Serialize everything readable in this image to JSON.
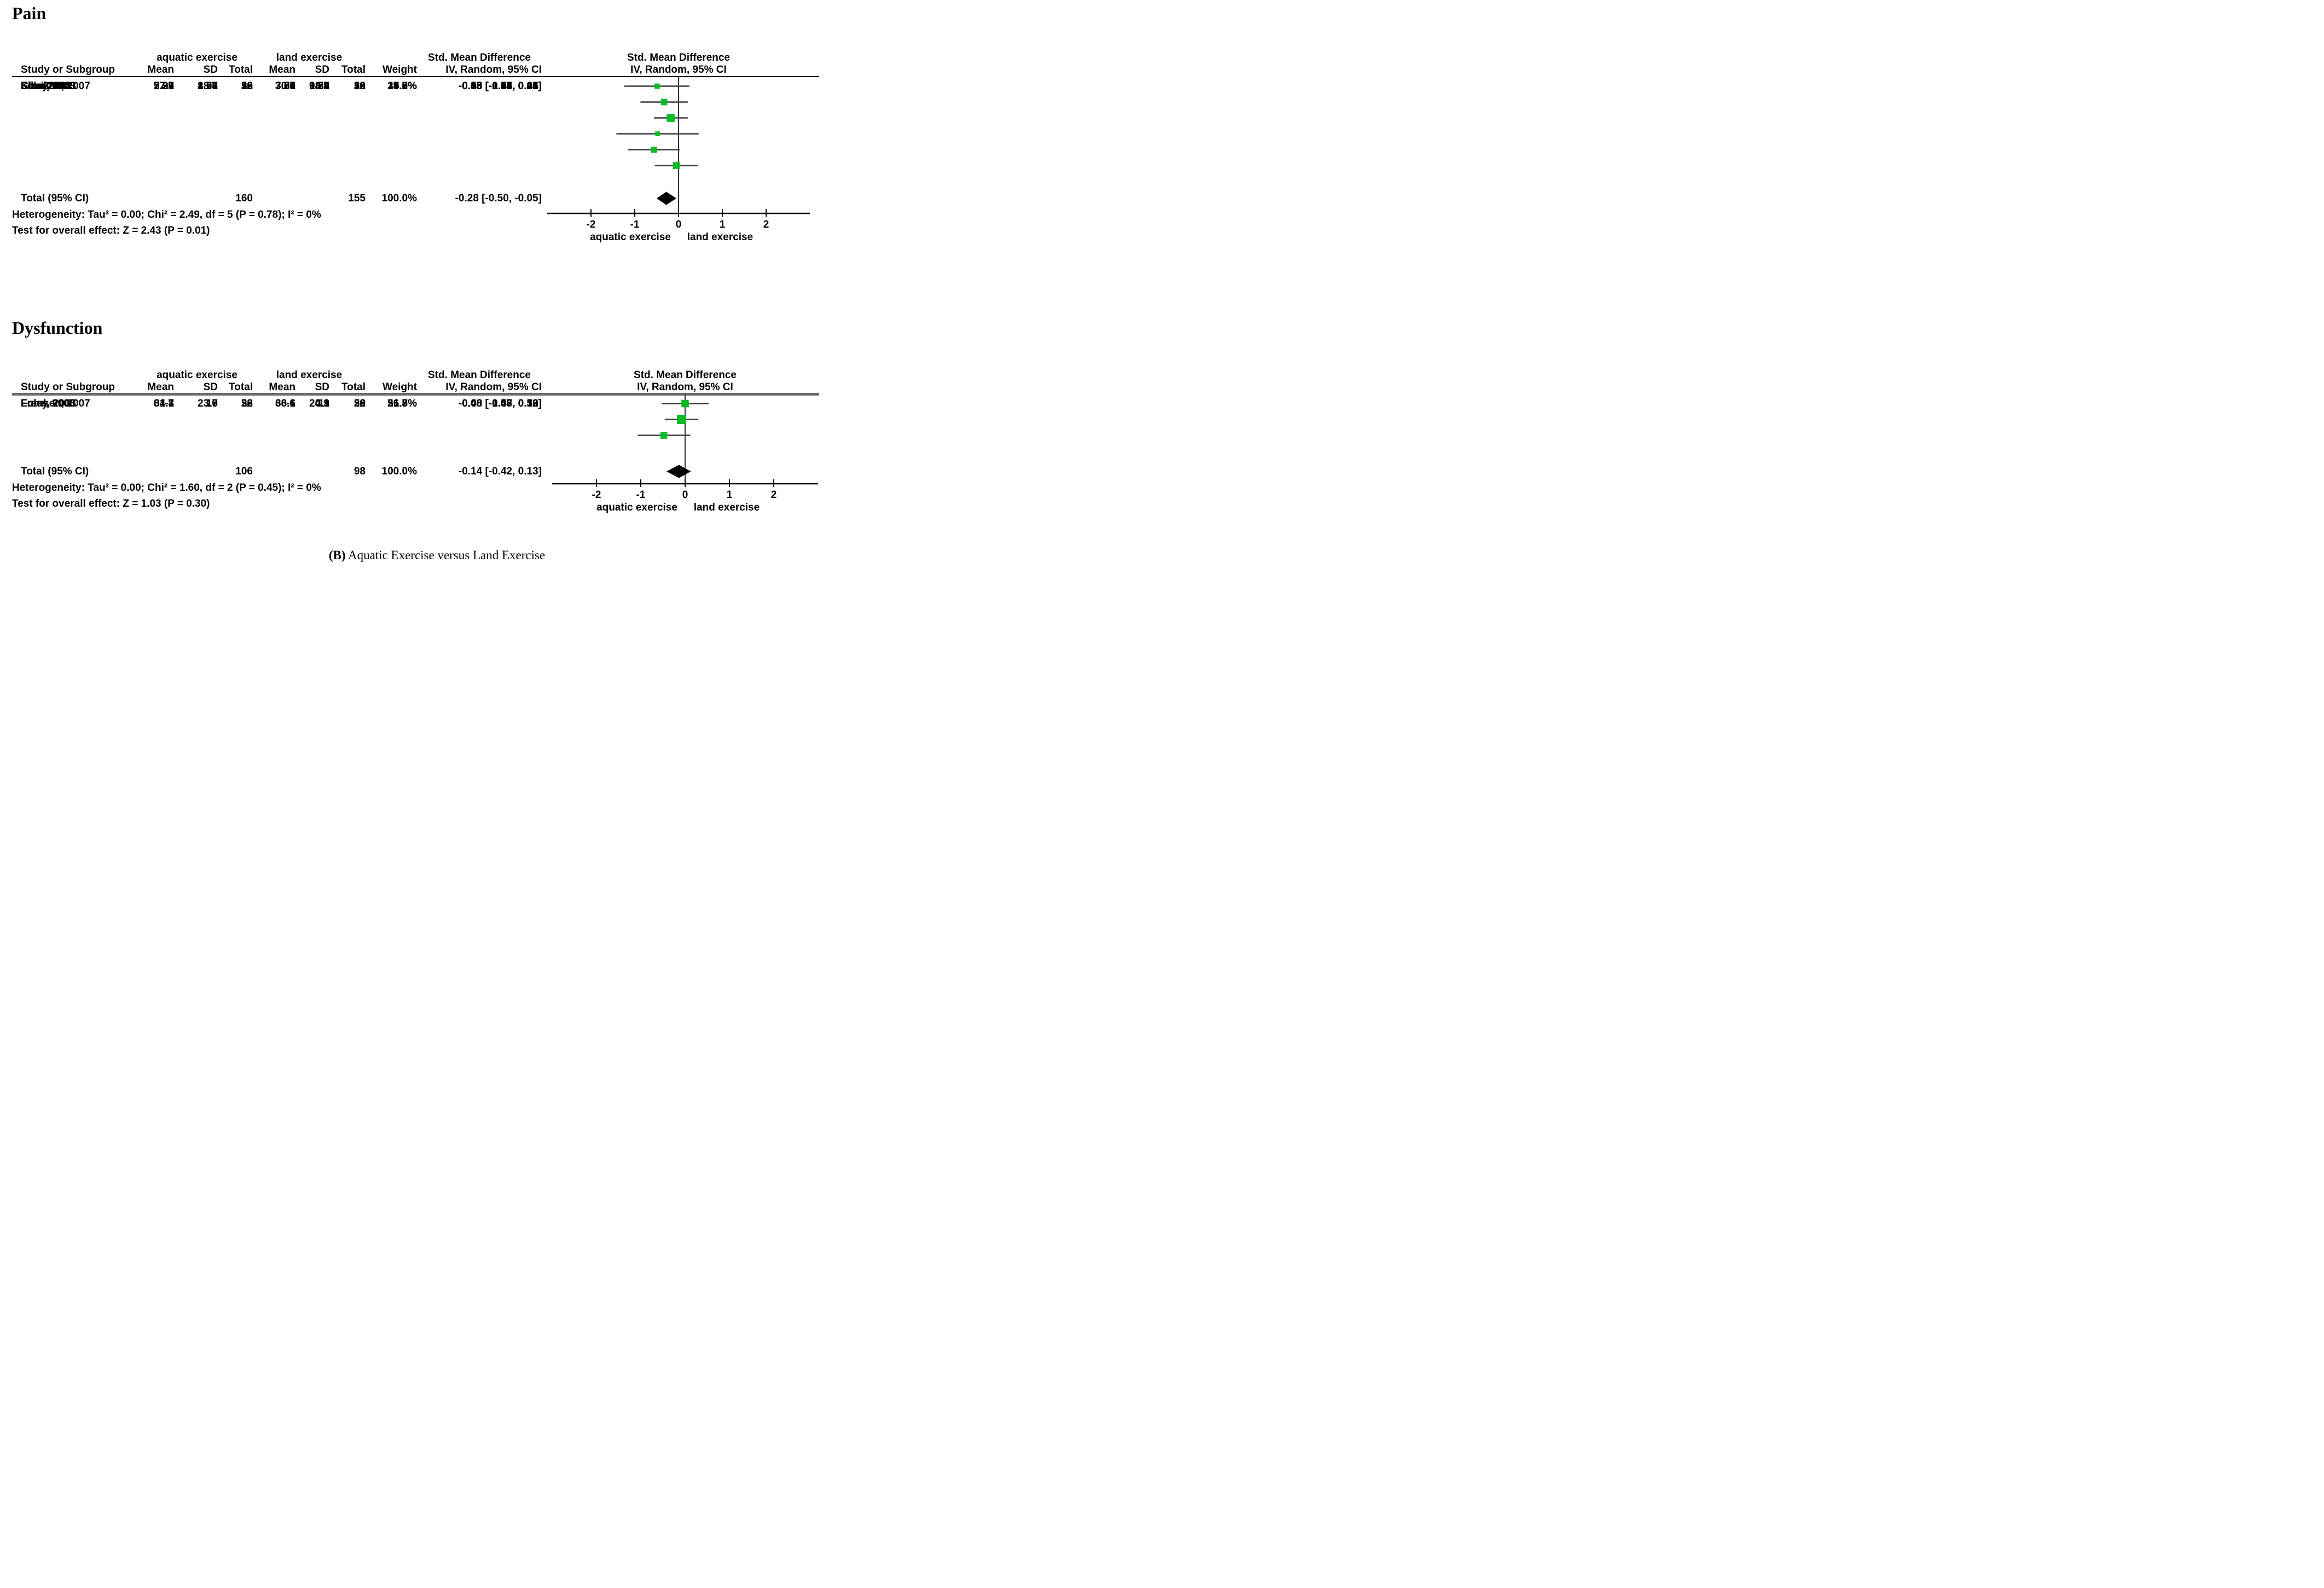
{
  "page": {
    "section1_title": "Pain",
    "section2_title": "Dysfunction",
    "caption_prefix": "(B)",
    "caption_text": " Aquatic Exercise versus Land Exercise"
  },
  "headers": {
    "group_a": "aquatic exercise",
    "group_l": "land exercise",
    "smd": "Std. Mean Difference",
    "study": "Study or Subgroup",
    "mean": "Mean",
    "sd": "SD",
    "total": "Total",
    "weight": "Weight",
    "method": "IV, Random, 95% CI"
  },
  "colors": {
    "effect_marker_green": "#0ABB26",
    "ci_line_gray": "#3C3C3C",
    "zero_line_gray": "#303030",
    "axis_black": "#000000",
    "summary_diamond_black": "#000000"
  },
  "chart_data": [
    {
      "type": "forest",
      "section": "Pain",
      "x_axis": {
        "ticks": [
          -2,
          -1,
          0,
          1,
          2
        ],
        "range": [
          -3,
          3
        ],
        "left_label": "aquatic exercise",
        "right_label": "land exercise"
      },
      "rows": [
        {
          "study": "Choi 2010",
          "a_mean": "2.92",
          "a_sd": "1.71",
          "a_total": "13",
          "l_mean": "3.75",
          "l_sd": "1.57",
          "l_total": "16",
          "weight": "9.0%",
          "ci_text": "-0.49 [-1.24, 0.25]",
          "est": -0.49,
          "lo": -1.24,
          "hi": 0.25,
          "w": 9.0
        },
        {
          "study": "Foley, 2003",
          "a_mean": "-1",
          "a_sd": "3",
          "a_total": "28",
          "l_mean": "0",
          "l_sd": "3",
          "l_total": "26",
          "weight": "17.2%",
          "ci_text": "-0.33 [-0.87, 0.21]",
          "est": -0.33,
          "lo": -0.87,
          "hi": 0.21,
          "w": 17.2
        },
        {
          "study": "Fransen, 2007",
          "a_mean": "27.3",
          "a_sd": "18.7",
          "a_total": "52",
          "l_mean": "30.7",
          "l_sd": "18.9",
          "l_total": "52",
          "weight": "33.5%",
          "ci_text": "-0.18 [-0.56, 0.21]",
          "est": -0.18,
          "lo": -0.56,
          "hi": 0.21,
          "w": 33.5
        },
        {
          "study": "Kim 2009",
          "a_mean": "2.27",
          "a_sd": "2.07",
          "a_total": "9",
          "l_mean": "3.01",
          "l_sd": "0.32",
          "l_total": "9",
          "weight": "5.6%",
          "ci_text": "-0.48 [-1.42, 0.46]",
          "est": -0.48,
          "lo": -1.42,
          "hi": 0.46,
          "w": 5.6
        },
        {
          "study": "Lund, 2008",
          "a_mean": "57.9",
          "a_sd": "3",
          "a_total": "26",
          "l_mean": "60",
          "l_sd": "4.4",
          "l_total": "20",
          "weight": "14.0%",
          "ci_text": "-0.56 [-1.16, 0.03]",
          "est": -0.56,
          "lo": -1.16,
          "hi": 0.03,
          "w": 14.0
        },
        {
          "study": "Silva 2008",
          "a_mean": "7.36",
          "a_sd": "8.66",
          "a_total": "32",
          "l_mean": "7.81",
          "l_sd": "9.22",
          "l_total": "32",
          "weight": "20.7%",
          "ci_text": "-0.05 [-0.54, 0.44]",
          "est": -0.05,
          "lo": -0.54,
          "hi": 0.44,
          "w": 20.7
        }
      ],
      "total": {
        "label": "Total (95% CI)",
        "a_total": "160",
        "l_total": "155",
        "weight": "100.0%",
        "ci_text": "-0.28 [-0.50, -0.05]",
        "est": -0.28,
        "lo": -0.5,
        "hi": -0.05
      },
      "heterogeneity": "Heterogeneity: Tau² = 0.00; Chi² = 2.49, df = 5 (P = 0.78); I² = 0%",
      "overall_effect": "Test for overall effect: Z = 2.43 (P = 0.01)"
    },
    {
      "type": "forest",
      "section": "Dysfunction",
      "x_axis": {
        "ticks": [
          -2,
          -1,
          0,
          1,
          2
        ],
        "range": [
          -3,
          3
        ],
        "left_label": "aquatic exercise",
        "right_label": "land exercise"
      },
      "rows": [
        {
          "study": "Foley, 2003",
          "a_mean": "-1",
          "a_sd": "10",
          "a_total": "28",
          "l_mean": "-1",
          "l_sd": "11",
          "l_total": "26",
          "weight": "26.7%",
          "ci_text": "0.00 [-0.53, 0.53]",
          "est": 0.0,
          "lo": -0.53,
          "hi": 0.53,
          "w": 26.7
        },
        {
          "study": "Fransen, 2007",
          "a_mean": "34.8",
          "a_sd": "23.7",
          "a_total": "52",
          "l_mean": "36.6",
          "l_sd": "20.9",
          "l_total": "52",
          "weight": "51.5%",
          "ci_text": "-0.08 [-0.46, 0.30]",
          "est": -0.08,
          "lo": -0.46,
          "hi": 0.3,
          "w": 51.5
        },
        {
          "study": "Lund, 2008",
          "a_mean": "61.7",
          "a_sd": "3.6",
          "a_total": "26",
          "l_mean": "63.6",
          "l_sd": "4.3",
          "l_total": "20",
          "weight": "21.8%",
          "ci_text": "-0.48 [-1.07, 0.12]",
          "est": -0.48,
          "lo": -1.07,
          "hi": 0.12,
          "w": 21.8
        }
      ],
      "total": {
        "label": "Total (95% CI)",
        "a_total": "106",
        "l_total": "98",
        "weight": "100.0%",
        "ci_text": "-0.14 [-0.42, 0.13]",
        "est": -0.14,
        "lo": -0.42,
        "hi": 0.13
      },
      "heterogeneity": "Heterogeneity: Tau² = 0.00; Chi² = 1.60, df = 2 (P = 0.45); I² = 0%",
      "overall_effect": "Test for overall effect: Z = 1.03 (P = 0.30)"
    }
  ]
}
